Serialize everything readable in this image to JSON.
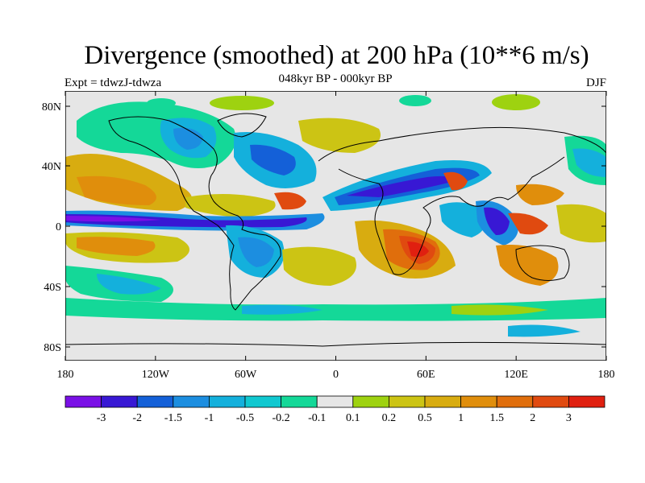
{
  "title": "Divergence (smoothed) at 200 hPa (10**6 m/s)",
  "subtitle": "048kyr BP - 000kyr BP",
  "left_label": "Expt = tdwzJ-tdwza",
  "right_label": "DJF",
  "lat_ticks": [
    "80N",
    "40N",
    "0",
    "40S",
    "80S"
  ],
  "lon_ticks": [
    "180",
    "120W",
    "60W",
    "0",
    "60E",
    "120E",
    "180"
  ],
  "colorbar": {
    "colors": [
      "#7a10e6",
      "#3818d4",
      "#1460d8",
      "#1c8ee0",
      "#14b0dc",
      "#10c8d0",
      "#14d898",
      "#e6e6e6",
      "#9ed210",
      "#ccc414",
      "#d8ac10",
      "#e08e0c",
      "#e06e0c",
      "#e04a10",
      "#e02010"
    ],
    "labels": [
      "-3",
      "-2",
      "-1.5",
      "-1",
      "-0.5",
      "-0.2",
      "-0.1",
      "0.1",
      "0.2",
      "0.5",
      "1",
      "1.5",
      "2",
      "3"
    ]
  }
}
